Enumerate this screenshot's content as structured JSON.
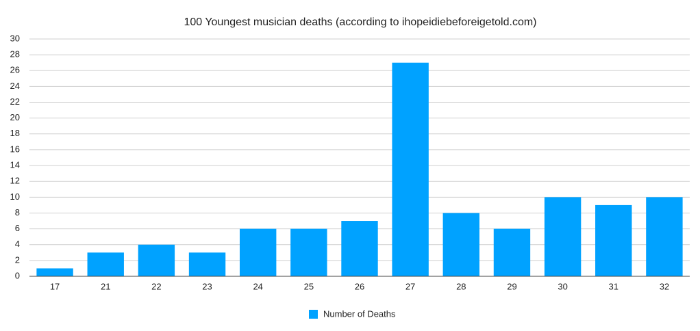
{
  "chart_data": {
    "type": "bar",
    "title": "100 Youngest musician deaths (according to ihopeidiebeforeigetold.com)",
    "categories": [
      "17",
      "21",
      "22",
      "23",
      "24",
      "25",
      "26",
      "27",
      "28",
      "29",
      "30",
      "31",
      "32"
    ],
    "series": [
      {
        "name": "Number of Deaths",
        "color": "#00a2ff",
        "values": [
          1,
          3,
          4,
          3,
          6,
          6,
          7,
          27,
          8,
          6,
          10,
          9,
          10
        ]
      }
    ],
    "ylim": [
      0,
      30
    ],
    "yticks": [
      0,
      2,
      4,
      6,
      8,
      10,
      12,
      14,
      16,
      18,
      20,
      22,
      24,
      26,
      28,
      30
    ],
    "grid": true,
    "legend": "bottom"
  }
}
